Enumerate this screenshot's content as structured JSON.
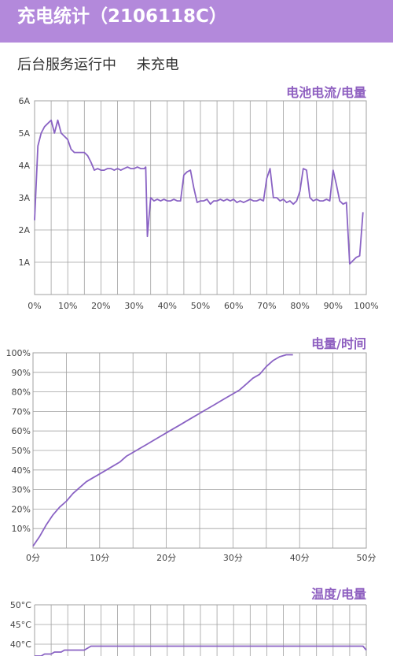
{
  "appbar": {
    "title": "充电统计（2106118C）"
  },
  "status": {
    "service": "后台服务运行中",
    "charging": "未充电"
  },
  "colors": {
    "accent": "#b389db",
    "line": "#8a63c4",
    "grid": "#a0a0a0",
    "title": "#8e5fc0"
  },
  "charts": {
    "current": {
      "title": "电池电流/电量",
      "xticks": [
        "0%",
        "10%",
        "20%",
        "30%",
        "40%",
        "50%",
        "60%",
        "70%",
        "80%",
        "90%",
        "100%"
      ],
      "yticks": [
        "1A",
        "2A",
        "3A",
        "4A",
        "5A",
        "6A"
      ]
    },
    "level": {
      "title": "电量/时间",
      "xticks": [
        "0分",
        "10分",
        "20分",
        "30分",
        "40分",
        "50分"
      ],
      "yticks": [
        "10%",
        "20%",
        "30%",
        "40%",
        "50%",
        "60%",
        "70%",
        "80%",
        "90%",
        "100%"
      ]
    },
    "temp": {
      "title": "温度/电量",
      "yticks": [
        "40°C",
        "45°C",
        "50°C"
      ]
    }
  },
  "chart_data": [
    {
      "type": "line",
      "title": "电池电流/电量",
      "xlim": [
        0,
        100
      ],
      "ylim": [
        0,
        6
      ],
      "x": [
        0,
        1,
        2,
        3,
        4,
        5,
        6,
        7,
        8,
        9,
        10,
        11,
        12,
        13,
        14,
        15,
        16,
        17,
        18,
        19,
        20,
        21,
        22,
        23,
        24,
        25,
        26,
        27,
        28,
        29,
        30,
        31,
        32,
        33,
        33.5,
        34,
        35,
        36,
        37,
        38,
        39,
        40,
        41,
        42,
        43,
        44,
        45,
        46,
        47,
        48,
        49,
        50,
        51,
        52,
        53,
        54,
        55,
        56,
        57,
        58,
        59,
        60,
        61,
        62,
        63,
        64,
        65,
        66,
        67,
        68,
        69,
        70,
        71,
        72,
        73,
        74,
        75,
        76,
        77,
        78,
        79,
        80,
        81,
        82,
        83,
        84,
        85,
        86,
        87,
        88,
        89,
        90,
        91,
        92,
        93,
        94,
        95,
        96,
        97,
        98,
        99
      ],
      "y": [
        2.3,
        4.6,
        5.0,
        5.2,
        5.3,
        5.4,
        5.0,
        5.4,
        5.0,
        4.9,
        4.8,
        4.5,
        4.4,
        4.4,
        4.4,
        4.4,
        4.3,
        4.1,
        3.85,
        3.9,
        3.85,
        3.85,
        3.9,
        3.9,
        3.85,
        3.9,
        3.85,
        3.9,
        3.95,
        3.9,
        3.9,
        3.95,
        3.9,
        3.9,
        3.95,
        1.8,
        3.0,
        2.9,
        2.95,
        2.9,
        2.95,
        2.9,
        2.9,
        2.95,
        2.9,
        2.9,
        3.7,
        3.8,
        3.85,
        3.3,
        2.85,
        2.9,
        2.9,
        2.95,
        2.8,
        2.9,
        2.9,
        2.95,
        2.9,
        2.95,
        2.9,
        2.95,
        2.85,
        2.9,
        2.85,
        2.9,
        2.95,
        2.9,
        2.9,
        2.95,
        2.9,
        3.6,
        3.9,
        3.0,
        3.0,
        2.9,
        2.95,
        2.85,
        2.9,
        2.8,
        2.9,
        3.2,
        3.9,
        3.85,
        3.0,
        2.9,
        2.95,
        2.9,
        2.9,
        2.95,
        2.9,
        3.85,
        3.4,
        2.9,
        2.8,
        2.85,
        0.95,
        1.05,
        1.15,
        1.2,
        2.55
      ]
    },
    {
      "type": "line",
      "title": "电量/时间",
      "xlim": [
        0,
        50
      ],
      "ylim": [
        0,
        100
      ],
      "x": [
        0,
        1,
        2,
        3,
        4,
        5,
        6,
        7,
        8,
        9,
        10,
        11,
        12,
        13,
        14,
        15,
        16,
        17,
        18,
        19,
        20,
        21,
        22,
        23,
        24,
        25,
        26,
        27,
        28,
        29,
        30,
        31,
        32,
        33,
        34,
        35,
        36,
        37,
        38,
        39
      ],
      "y": [
        1,
        6,
        12,
        17,
        21,
        24,
        28,
        31,
        34,
        36,
        38,
        40,
        42,
        44,
        47,
        49,
        51,
        53,
        55,
        57,
        59,
        61,
        63,
        65,
        67,
        69,
        71,
        73,
        75,
        77,
        79,
        81,
        84,
        87,
        89,
        93,
        96,
        98,
        99,
        99
      ]
    },
    {
      "type": "line",
      "title": "温度/电量",
      "x": [
        0,
        2,
        3,
        5,
        6,
        8,
        9,
        15,
        16,
        17,
        20,
        30,
        40,
        50,
        60,
        70,
        80,
        90,
        99,
        100
      ],
      "y": [
        37,
        37,
        37.5,
        37.5,
        38,
        38,
        38.5,
        38.5,
        39,
        39.5,
        39.5,
        39.5,
        39.5,
        39.5,
        39.5,
        39.5,
        39.5,
        39.5,
        39.5,
        38.5
      ]
    }
  ]
}
